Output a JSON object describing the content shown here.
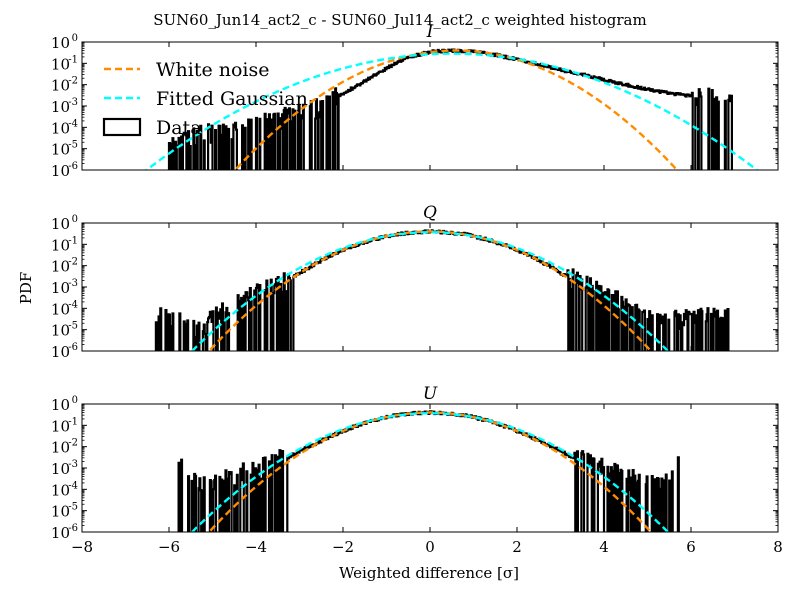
{
  "figure": {
    "suptitle": "SUN60_Jun14_act2_c - SUN60_Jul14_act2_c weighted histogram",
    "ylabel": "PDF",
    "xlabel": "Weighted difference [σ]"
  },
  "legend": {
    "location": "upper left of top panel",
    "items": [
      {
        "label": "White noise",
        "color": "#ff8c00",
        "style": "dashed"
      },
      {
        "label": "Fitted Gaussian",
        "color": "#00ffff",
        "style": "dashed"
      },
      {
        "label": "Data",
        "color": "#000000",
        "style": "step"
      }
    ]
  },
  "chart_data": [
    {
      "type": "line",
      "title": "I",
      "xlim": [
        -8,
        8
      ],
      "ylim": [
        1e-06,
        1
      ],
      "yscale": "log",
      "xticks": [
        -8,
        -6,
        -4,
        -2,
        0,
        2,
        4,
        6,
        8
      ],
      "xtick_labels": [
        "−8",
        "−6",
        "−4",
        "−2",
        "0",
        "2",
        "4",
        "6",
        "8"
      ],
      "yticks": [
        1e-06,
        1e-05,
        0.0001,
        0.001,
        0.01,
        0.1,
        1
      ],
      "ytick_labels": [
        [
          "10",
          "-6"
        ],
        [
          "10",
          "-5"
        ],
        [
          "10",
          "-4"
        ],
        [
          "10",
          "-3"
        ],
        [
          "10",
          "-2"
        ],
        [
          "10",
          "-1"
        ],
        [
          "10",
          "0"
        ]
      ],
      "series": [
        {
          "name": "White noise",
          "kind": "gaussian",
          "mean": 0.6,
          "sigma": 1.0
        },
        {
          "name": "Fitted Gaussian",
          "kind": "gaussian",
          "mean": 0.5,
          "sigma": 1.4
        },
        {
          "name": "Data",
          "kind": "histogram",
          "x": [
            -6.0,
            -5.5,
            -5.0,
            -4.5,
            -4.0,
            -3.5,
            -3.0,
            -2.5,
            -2.0,
            -1.5,
            -1.0,
            -0.5,
            0.0,
            0.5,
            1.0,
            1.5,
            2.0,
            2.5,
            3.0,
            3.5,
            4.0,
            4.5,
            5.0,
            5.5,
            6.0,
            6.5,
            7.0
          ],
          "y": [
            1e-05,
            3e-05,
            5e-05,
            5e-05,
            0.0001,
            0.0002,
            0.0004,
            0.001,
            0.004,
            0.015,
            0.06,
            0.2,
            0.35,
            0.4,
            0.35,
            0.25,
            0.15,
            0.09,
            0.05,
            0.03,
            0.017,
            0.01,
            0.006,
            0.004,
            0.003,
            0.002,
            0.001
          ],
          "min_x": -6.0,
          "max_x": 7.0
        }
      ]
    },
    {
      "type": "line",
      "title": "Q",
      "xlim": [
        -8,
        8
      ],
      "ylim": [
        1e-06,
        1
      ],
      "yscale": "log",
      "xticks": [
        -8,
        -6,
        -4,
        -2,
        0,
        2,
        4,
        6,
        8
      ],
      "yticks": [
        1e-06,
        1e-05,
        0.0001,
        0.001,
        0.01,
        0.1,
        1
      ],
      "ytick_labels": [
        [
          "10",
          "-6"
        ],
        [
          "10",
          "-5"
        ],
        [
          "10",
          "-4"
        ],
        [
          "10",
          "-3"
        ],
        [
          "10",
          "-2"
        ],
        [
          "10",
          "-1"
        ],
        [
          "10",
          "0"
        ]
      ],
      "series": [
        {
          "name": "White noise",
          "kind": "gaussian",
          "mean": 0.0,
          "sigma": 1.0
        },
        {
          "name": "Fitted Gaussian",
          "kind": "gaussian",
          "mean": 0.0,
          "sigma": 1.08
        },
        {
          "name": "Data",
          "kind": "histogram",
          "x": [
            -6.3,
            -5.3,
            -4.8,
            -4.3,
            -3.8,
            -3.3,
            -2.8,
            -2.3,
            -1.8,
            -1.3,
            -0.8,
            -0.3,
            0.0,
            0.3,
            0.8,
            1.3,
            1.8,
            2.3,
            2.8,
            3.3,
            3.8,
            4.3,
            4.8,
            5.3,
            6.9
          ],
          "y": [
            4e-05,
            1e-05,
            5e-05,
            0.0002,
            0.0006,
            0.002,
            0.008,
            0.03,
            0.08,
            0.17,
            0.3,
            0.38,
            0.4,
            0.38,
            0.3,
            0.17,
            0.08,
            0.03,
            0.008,
            0.002,
            0.0006,
            0.0002,
            5e-05,
            2e-05,
            4e-05
          ],
          "min_x": -6.3,
          "max_x": 6.9
        }
      ]
    },
    {
      "type": "line",
      "title": "U",
      "xlim": [
        -8,
        8
      ],
      "ylim": [
        1e-06,
        1
      ],
      "yscale": "log",
      "xticks": [
        -8,
        -6,
        -4,
        -2,
        0,
        2,
        4,
        6,
        8
      ],
      "yticks": [
        1e-06,
        1e-05,
        0.0001,
        0.001,
        0.01,
        0.1,
        1
      ],
      "ytick_labels": [
        [
          "10",
          "-6"
        ],
        [
          "10",
          "-5"
        ],
        [
          "10",
          "-4"
        ],
        [
          "10",
          "-3"
        ],
        [
          "10",
          "-2"
        ],
        [
          "10",
          "-1"
        ],
        [
          "10",
          "0"
        ]
      ],
      "series": [
        {
          "name": "White noise",
          "kind": "gaussian",
          "mean": 0.0,
          "sigma": 1.0
        },
        {
          "name": "Fitted Gaussian",
          "kind": "gaussian",
          "mean": 0.0,
          "sigma": 1.08
        },
        {
          "name": "Data",
          "kind": "histogram",
          "x": [
            -5.8,
            -5.3,
            -4.8,
            -4.3,
            -3.8,
            -3.3,
            -2.8,
            -2.3,
            -1.8,
            -1.3,
            -0.8,
            -0.3,
            0.0,
            0.3,
            0.8,
            1.3,
            1.8,
            2.3,
            2.8,
            3.3,
            3.8,
            4.3,
            4.8,
            5.3,
            5.7
          ],
          "y": [
            0.001,
            0.0002,
            0.0002,
            0.0005,
            0.001,
            0.003,
            0.01,
            0.03,
            0.08,
            0.17,
            0.3,
            0.38,
            0.4,
            0.38,
            0.3,
            0.17,
            0.08,
            0.03,
            0.01,
            0.003,
            0.001,
            0.0005,
            0.0002,
            0.0001,
            0.001
          ],
          "min_x": -5.8,
          "max_x": 5.7
        }
      ]
    }
  ]
}
